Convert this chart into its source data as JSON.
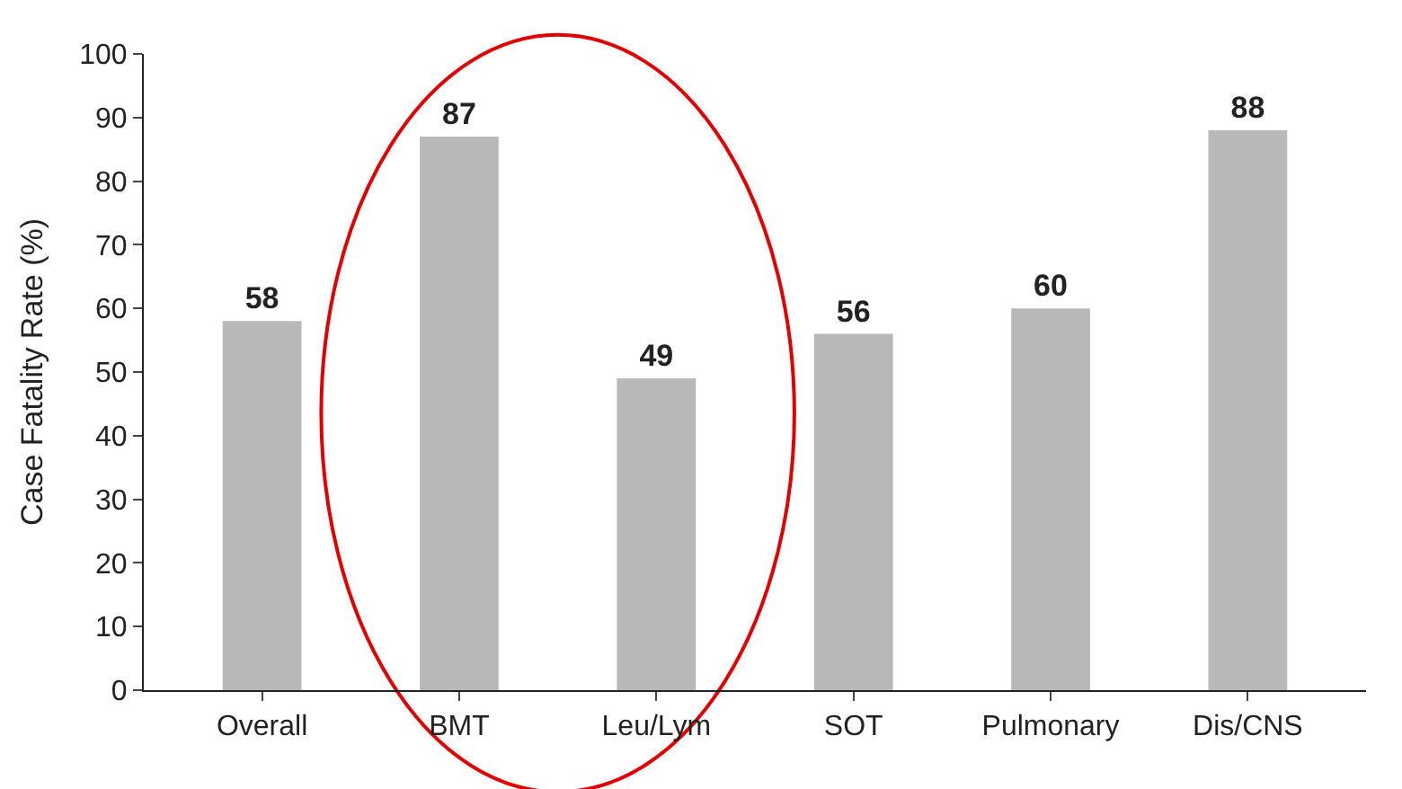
{
  "chart_data": {
    "type": "bar",
    "ylabel": "Case Fatality Rate (%)",
    "categories": [
      "Overall",
      "BMT",
      "Leu/Lym",
      "SOT",
      "Pulmonary",
      "Dis/CNS"
    ],
    "values": [
      58,
      87,
      49,
      56,
      60,
      88
    ],
    "color": "#b8b8b8",
    "ylim": [
      0,
      100
    ],
    "yticks": [
      0,
      10,
      20,
      30,
      40,
      50,
      60,
      70,
      80,
      90,
      100
    ],
    "data_labels": true,
    "legend": false
  }
}
